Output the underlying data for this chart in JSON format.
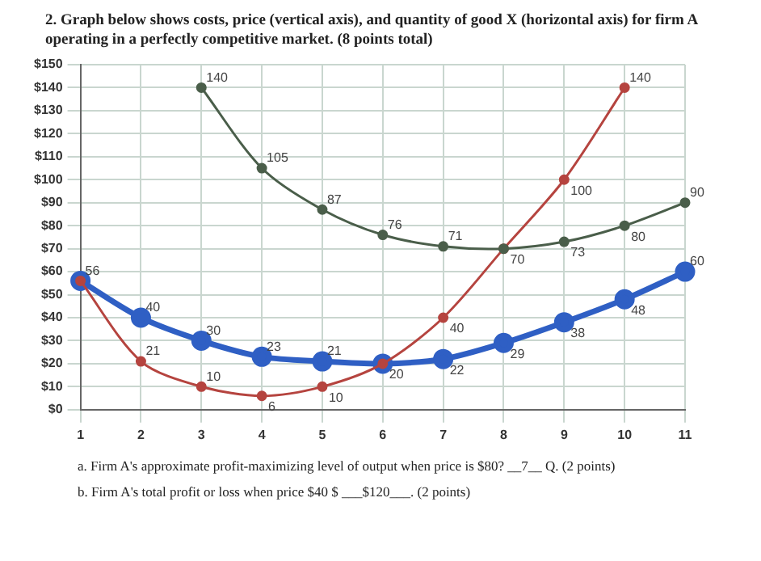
{
  "chart_data": {
    "type": "line",
    "title": "2. Graph below shows costs, price (vertical axis), and quantity of good X (horizontal axis) for firm A operating in a perfectly competitive market. (8 points total)",
    "categories": [
      "1",
      "2",
      "3",
      "4",
      "5",
      "6",
      "7",
      "8",
      "9",
      "10",
      "11"
    ],
    "series": [
      {
        "color": "#4a5e4a",
        "values": [
          null,
          null,
          140,
          105,
          87,
          76,
          71,
          70,
          73,
          80,
          90
        ],
        "value_labels": [
          null,
          null,
          "140",
          "105",
          "87",
          "76",
          "71",
          null,
          "73",
          "80",
          "90"
        ]
      },
      {
        "color": "#b5443f",
        "values": [
          56,
          21,
          10,
          6,
          10,
          20,
          40,
          70,
          100,
          140,
          null
        ],
        "value_labels": [
          "56",
          "21",
          "10",
          "6",
          "10",
          "20",
          "40",
          "70",
          "100",
          "140",
          null
        ]
      },
      {
        "color": "#2f5fc4",
        "values": [
          56,
          40,
          30,
          23,
          21,
          20,
          22,
          29,
          38,
          48,
          60
        ],
        "value_labels": [
          null,
          "40",
          "30",
          "23",
          "21",
          null,
          "22",
          "29",
          "38",
          "48",
          "60"
        ]
      }
    ],
    "ylim": [
      0,
      150
    ],
    "yticks": [
      {
        "value": 0,
        "label": "$0"
      },
      {
        "value": 10,
        "label": "$10"
      },
      {
        "value": 20,
        "label": "$20"
      },
      {
        "value": 30,
        "label": "$30"
      },
      {
        "value": 40,
        "label": "$40"
      },
      {
        "value": 50,
        "label": "$50"
      },
      {
        "value": 60,
        "label": "$60"
      },
      {
        "value": 70,
        "label": "$70"
      },
      {
        "value": 80,
        "label": "$80"
      },
      {
        "value": 90,
        "label": "$90"
      },
      {
        "value": 100,
        "label": "$100"
      },
      {
        "value": 110,
        "label": "$110"
      },
      {
        "value": 120,
        "label": "$120"
      },
      {
        "value": 130,
        "label": "$130"
      },
      {
        "value": 140,
        "label": "$140"
      },
      {
        "value": 150,
        "label": "$150"
      }
    ],
    "grid": true,
    "legend": false,
    "marker": "circle",
    "line_style": "solid",
    "annotations": [
      "a. Firm A's approximate profit-maximizing level of output when price is $80? __7__ Q. (2 points)",
      "b. Firm A's total profit or loss when price $40 $ ___$120___. (2 points)"
    ]
  }
}
